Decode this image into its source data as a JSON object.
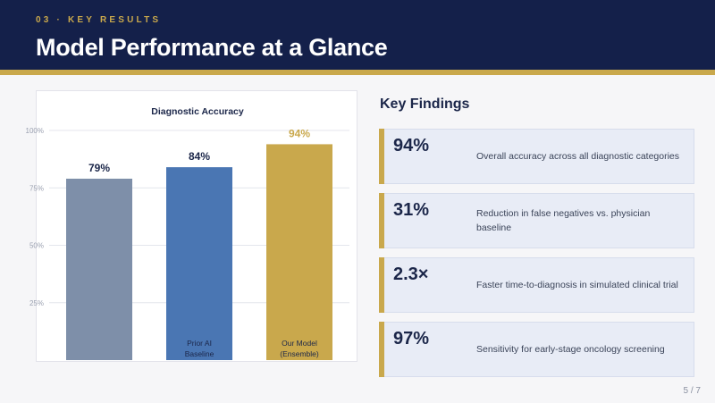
{
  "header": {
    "section_label": "03 · KEY RESULTS",
    "title": "Model Performance at a Glance"
  },
  "chart_data": {
    "type": "bar",
    "title": "Diagnostic Accuracy",
    "categories": [
      "",
      "Prior AI Baseline",
      "Our Model (Ensemble)"
    ],
    "category_lines": [
      [],
      [
        "Prior AI",
        "Baseline"
      ],
      [
        "Our Model",
        "(Ensemble)"
      ]
    ],
    "values": [
      79,
      84,
      94
    ],
    "value_labels": [
      "79%",
      "84%",
      "94%"
    ],
    "colors": [
      "#7e8fa9",
      "#4a76b3",
      "#c9a84c"
    ],
    "value_label_colors": [
      "#1b2649",
      "#1b2649",
      "#c9a84c"
    ],
    "yticks": [
      100,
      75,
      50,
      25
    ],
    "ytick_labels": [
      "100%",
      "75%",
      "50%",
      "25%"
    ],
    "ylim": [
      0,
      100
    ],
    "xlabel": "",
    "ylabel": "",
    "grid": true
  },
  "findings": {
    "title": "Key Findings",
    "cards": [
      {
        "value": "94%",
        "description": "Overall accuracy across all diagnostic categories"
      },
      {
        "value": "31%",
        "description": "Reduction in false negatives vs. physician baseline"
      },
      {
        "value": "2.3×",
        "description": "Faster time-to-diagnosis in simulated clinical trial"
      },
      {
        "value": "97%",
        "description": "Sensitivity for early-stage oncology screening"
      }
    ]
  },
  "footer": {
    "page": "5 / 7"
  },
  "colors": {
    "navy": "#14204a",
    "gold": "#c9a84c",
    "card_bg": "#e8ecf6"
  }
}
